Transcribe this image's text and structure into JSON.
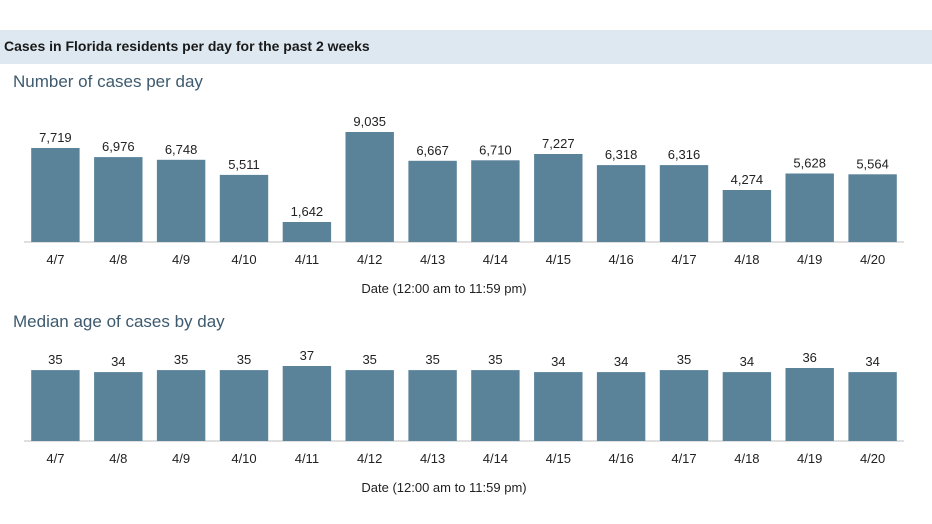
{
  "header": {
    "title": "Cases in Florida residents per day for the past 2 weeks"
  },
  "colors": {
    "bar": "#5a8299",
    "banner": "#dde8f0",
    "section_title": "#3d5a6e",
    "axis": "#bfbfbf"
  },
  "chart_data": [
    {
      "type": "bar",
      "title": "Number of cases per day",
      "xlabel": "Date (12:00 am to 11:59 pm)",
      "ylabel": "",
      "categories": [
        "4/7",
        "4/8",
        "4/9",
        "4/10",
        "4/11",
        "4/12",
        "4/13",
        "4/14",
        "4/15",
        "4/16",
        "4/17",
        "4/18",
        "4/19",
        "4/20"
      ],
      "values": [
        7719,
        6976,
        6748,
        5511,
        1642,
        9035,
        6667,
        6710,
        7227,
        6318,
        6316,
        4274,
        5628,
        5564
      ],
      "value_labels": [
        "7,719",
        "6,976",
        "6,748",
        "5,511",
        "1,642",
        "9,035",
        "6,667",
        "6,710",
        "7,227",
        "6,318",
        "6,316",
        "4,274",
        "5,628",
        "5,564"
      ],
      "ylim": [
        0,
        9035
      ],
      "grid": false,
      "legend": "none"
    },
    {
      "type": "bar",
      "title": "Median age of cases by day",
      "xlabel": "Date (12:00 am to 11:59 pm)",
      "ylabel": "",
      "categories": [
        "4/7",
        "4/8",
        "4/9",
        "4/10",
        "4/11",
        "4/12",
        "4/13",
        "4/14",
        "4/15",
        "4/16",
        "4/17",
        "4/18",
        "4/19",
        "4/20"
      ],
      "values": [
        35,
        34,
        35,
        35,
        37,
        35,
        35,
        35,
        34,
        34,
        35,
        34,
        36,
        34
      ],
      "value_labels": [
        "35",
        "34",
        "35",
        "35",
        "37",
        "35",
        "35",
        "35",
        "34",
        "34",
        "35",
        "34",
        "36",
        "34"
      ],
      "ylim": [
        0,
        37
      ],
      "grid": false,
      "legend": "none"
    }
  ]
}
